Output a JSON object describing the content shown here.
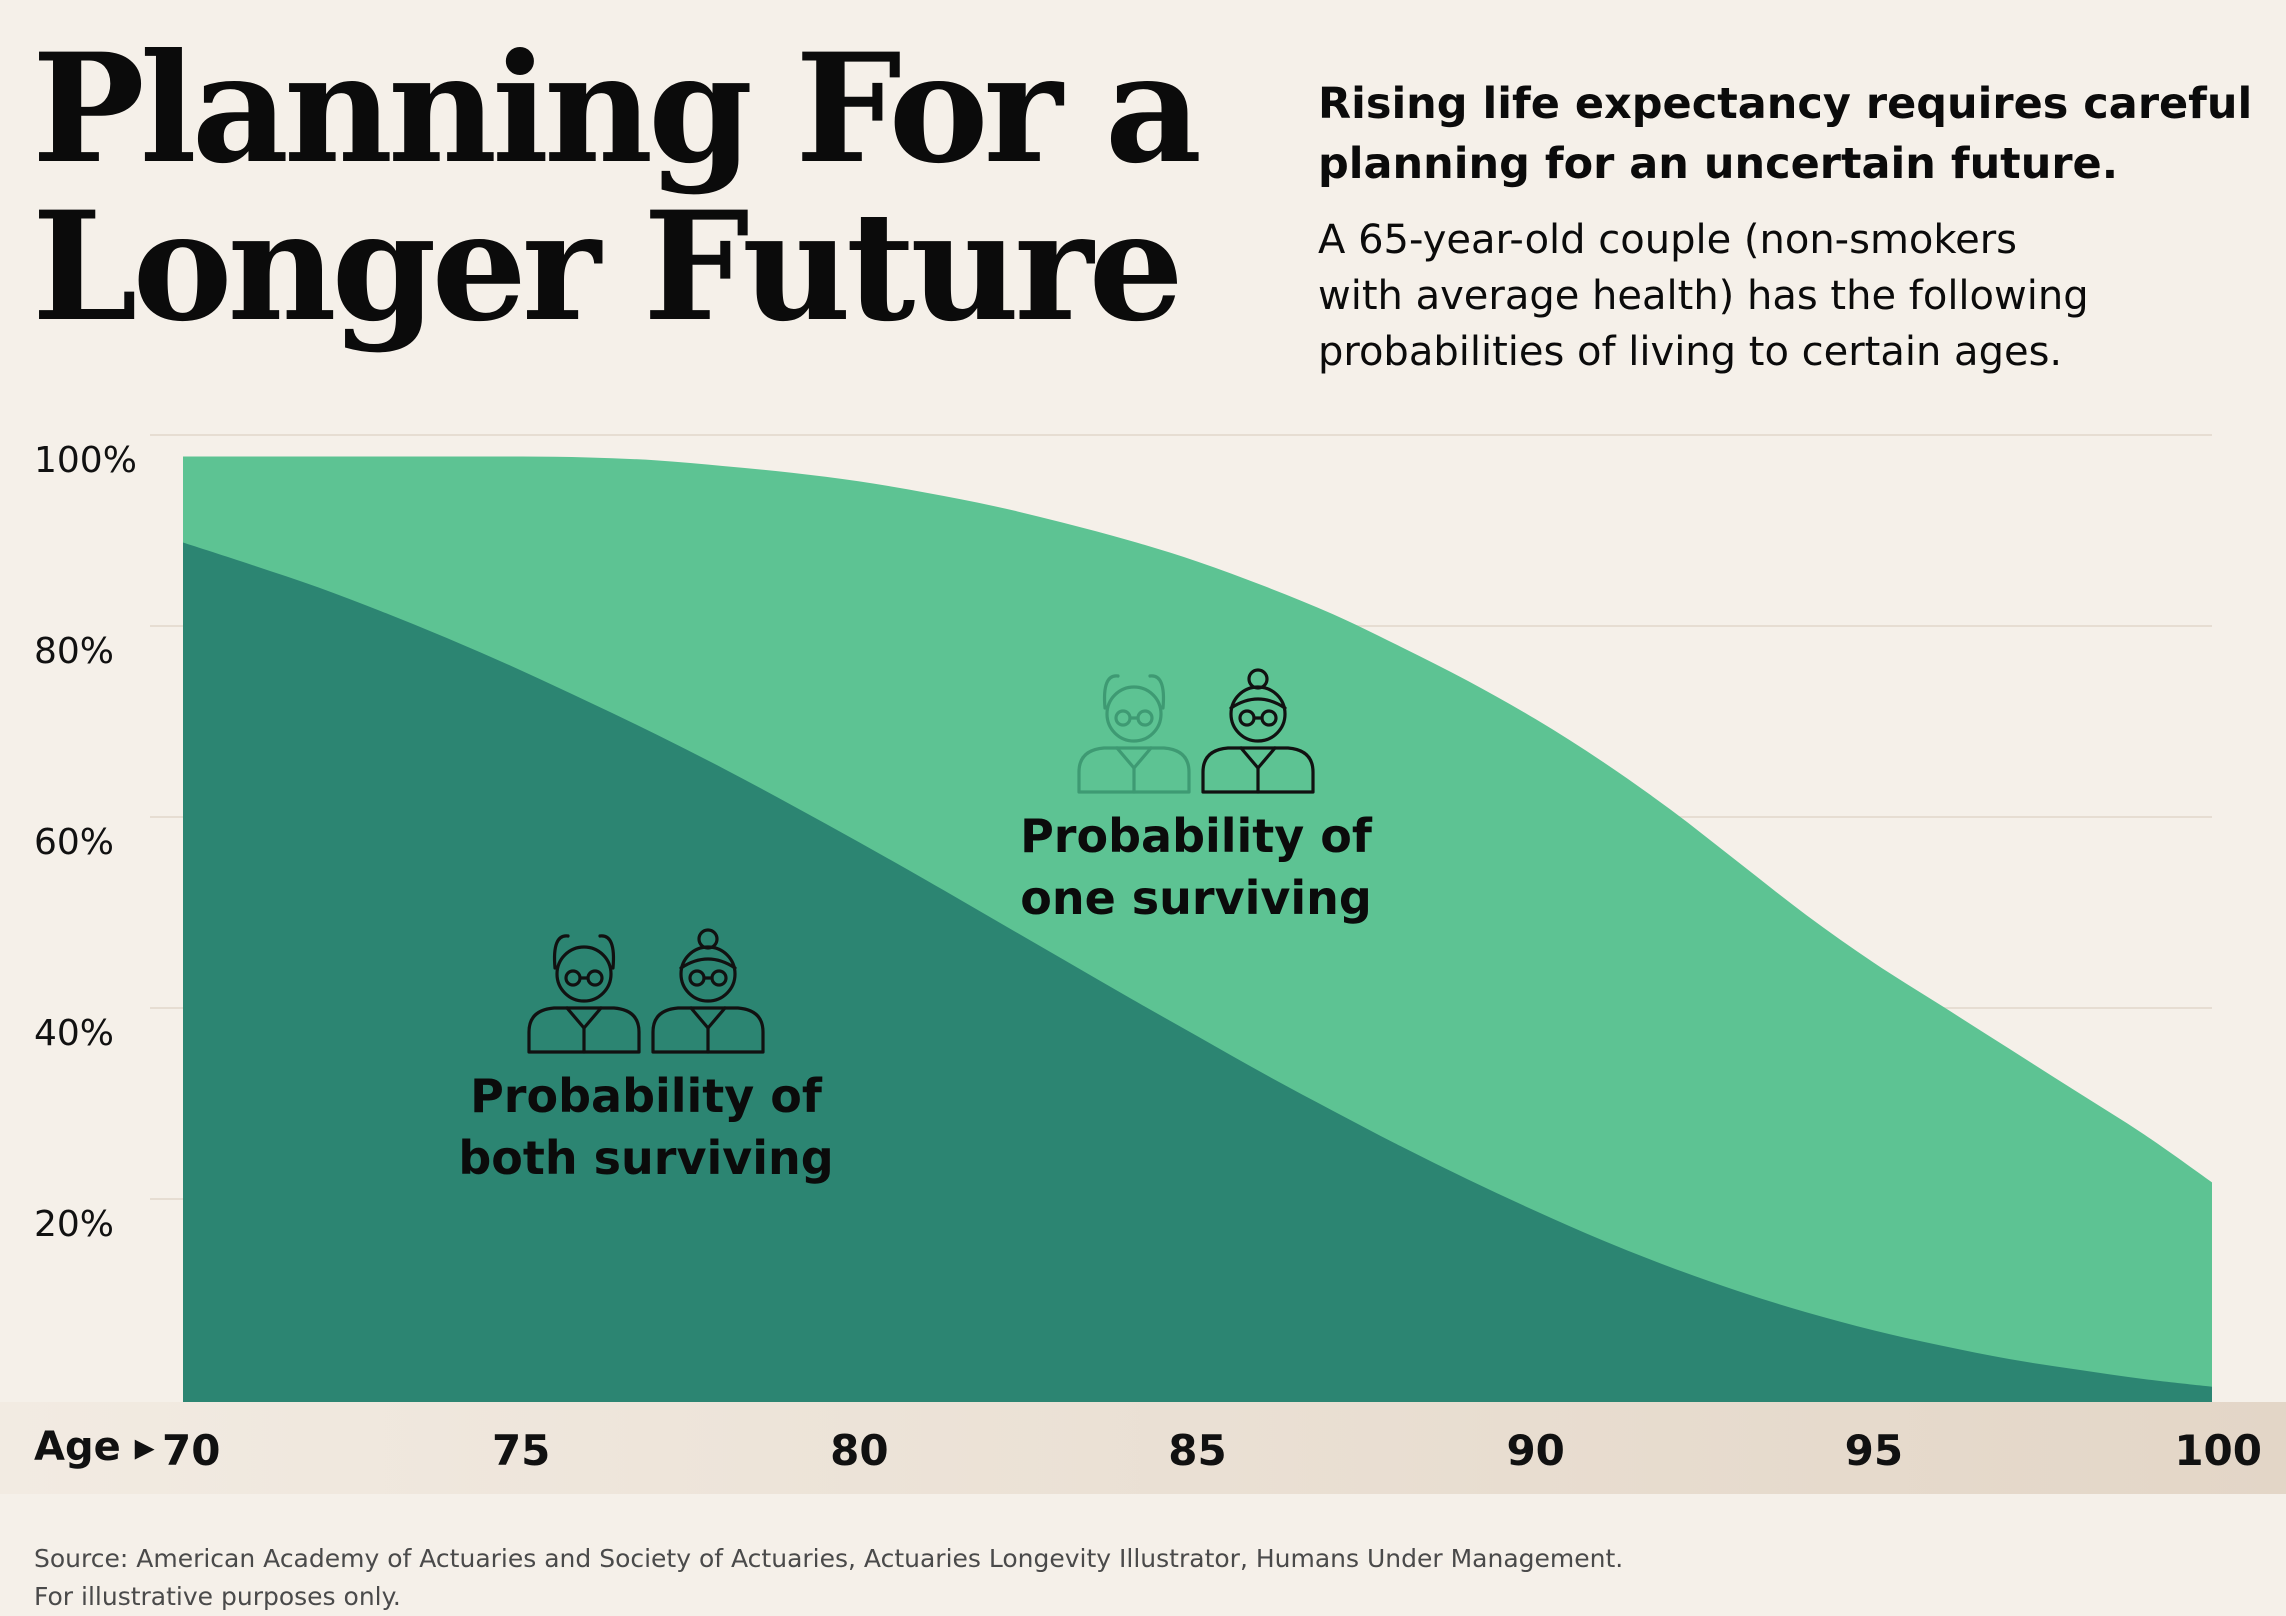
{
  "title_lines": [
    "Planning For a",
    "Longer Future"
  ],
  "subtitle_lines": [
    "Rising life expectancy requires careful",
    "planning for an uncertain future."
  ],
  "description_lines": [
    "A 65-year-old couple (non-smokers",
    "with average health) has the following",
    "probabilities of living to certain ages."
  ],
  "source_lines": [
    "Source: American Academy of Actuaries and Society of Actuaries, Actuaries Longevity Illustrator, Humans Under Management.",
    "For illustrative purposes only."
  ],
  "chart_data": {
    "type": "area",
    "x_prefix": "Age ▸",
    "x": [
      70,
      71,
      72,
      73,
      74,
      75,
      76,
      77,
      78,
      79,
      80,
      81,
      82,
      83,
      84,
      85,
      86,
      87,
      88,
      89,
      90,
      91,
      92,
      93,
      94,
      95,
      96,
      97,
      98,
      99,
      100
    ],
    "xticks": [
      70,
      75,
      80,
      85,
      90,
      95,
      100
    ],
    "xlim": [
      70,
      100
    ],
    "ylim": [
      0,
      100
    ],
    "yticks": [
      20,
      40,
      60,
      80,
      100
    ],
    "ytick_labels": [
      "20%",
      "40%",
      "60%",
      "80%",
      "100%"
    ],
    "grid": true,
    "series": [
      {
        "name": "Probability of one surviving",
        "color": "#5dc393",
        "values": [
          99,
          99,
          99,
          99,
          99,
          99,
          98.9,
          98.6,
          98,
          97.3,
          96.4,
          95.2,
          93.8,
          92.1,
          90.2,
          88,
          85.4,
          82.5,
          79.1,
          75.5,
          71.5,
          67,
          62,
          56.5,
          51,
          46,
          41.5,
          37,
          32.5,
          28,
          23
        ]
      },
      {
        "name": "Probability of both surviving",
        "color": "#2c8572",
        "values": [
          90,
          87.7,
          85.3,
          82.6,
          79.7,
          76.6,
          73.3,
          69.9,
          66.3,
          62.5,
          58.6,
          54.6,
          50.5,
          46.4,
          42.3,
          38.3,
          34.3,
          30.5,
          26.8,
          23.3,
          20,
          16.9,
          14.1,
          11.6,
          9.4,
          7.5,
          5.9,
          4.5,
          3.4,
          2.4,
          1.6
        ]
      }
    ],
    "annotations": [
      {
        "lines": [
          "Probability of",
          "one surviving"
        ],
        "anchor_x": 85,
        "anchor_y": 58,
        "icon": "couple-icon-woman-highlighted"
      },
      {
        "lines": [
          "Probability of",
          "both surviving"
        ],
        "anchor_x": 77,
        "anchor_y": 31,
        "icon": "couple-icon"
      }
    ],
    "colors": {
      "background": "#f5f0e9",
      "gridline": "#e6ddd2",
      "axis_band_start": "#f2ebe2",
      "axis_band_end": "#e3d6c7",
      "icon_stroke": "#111111",
      "icon_faded": "#3e9a73"
    }
  }
}
